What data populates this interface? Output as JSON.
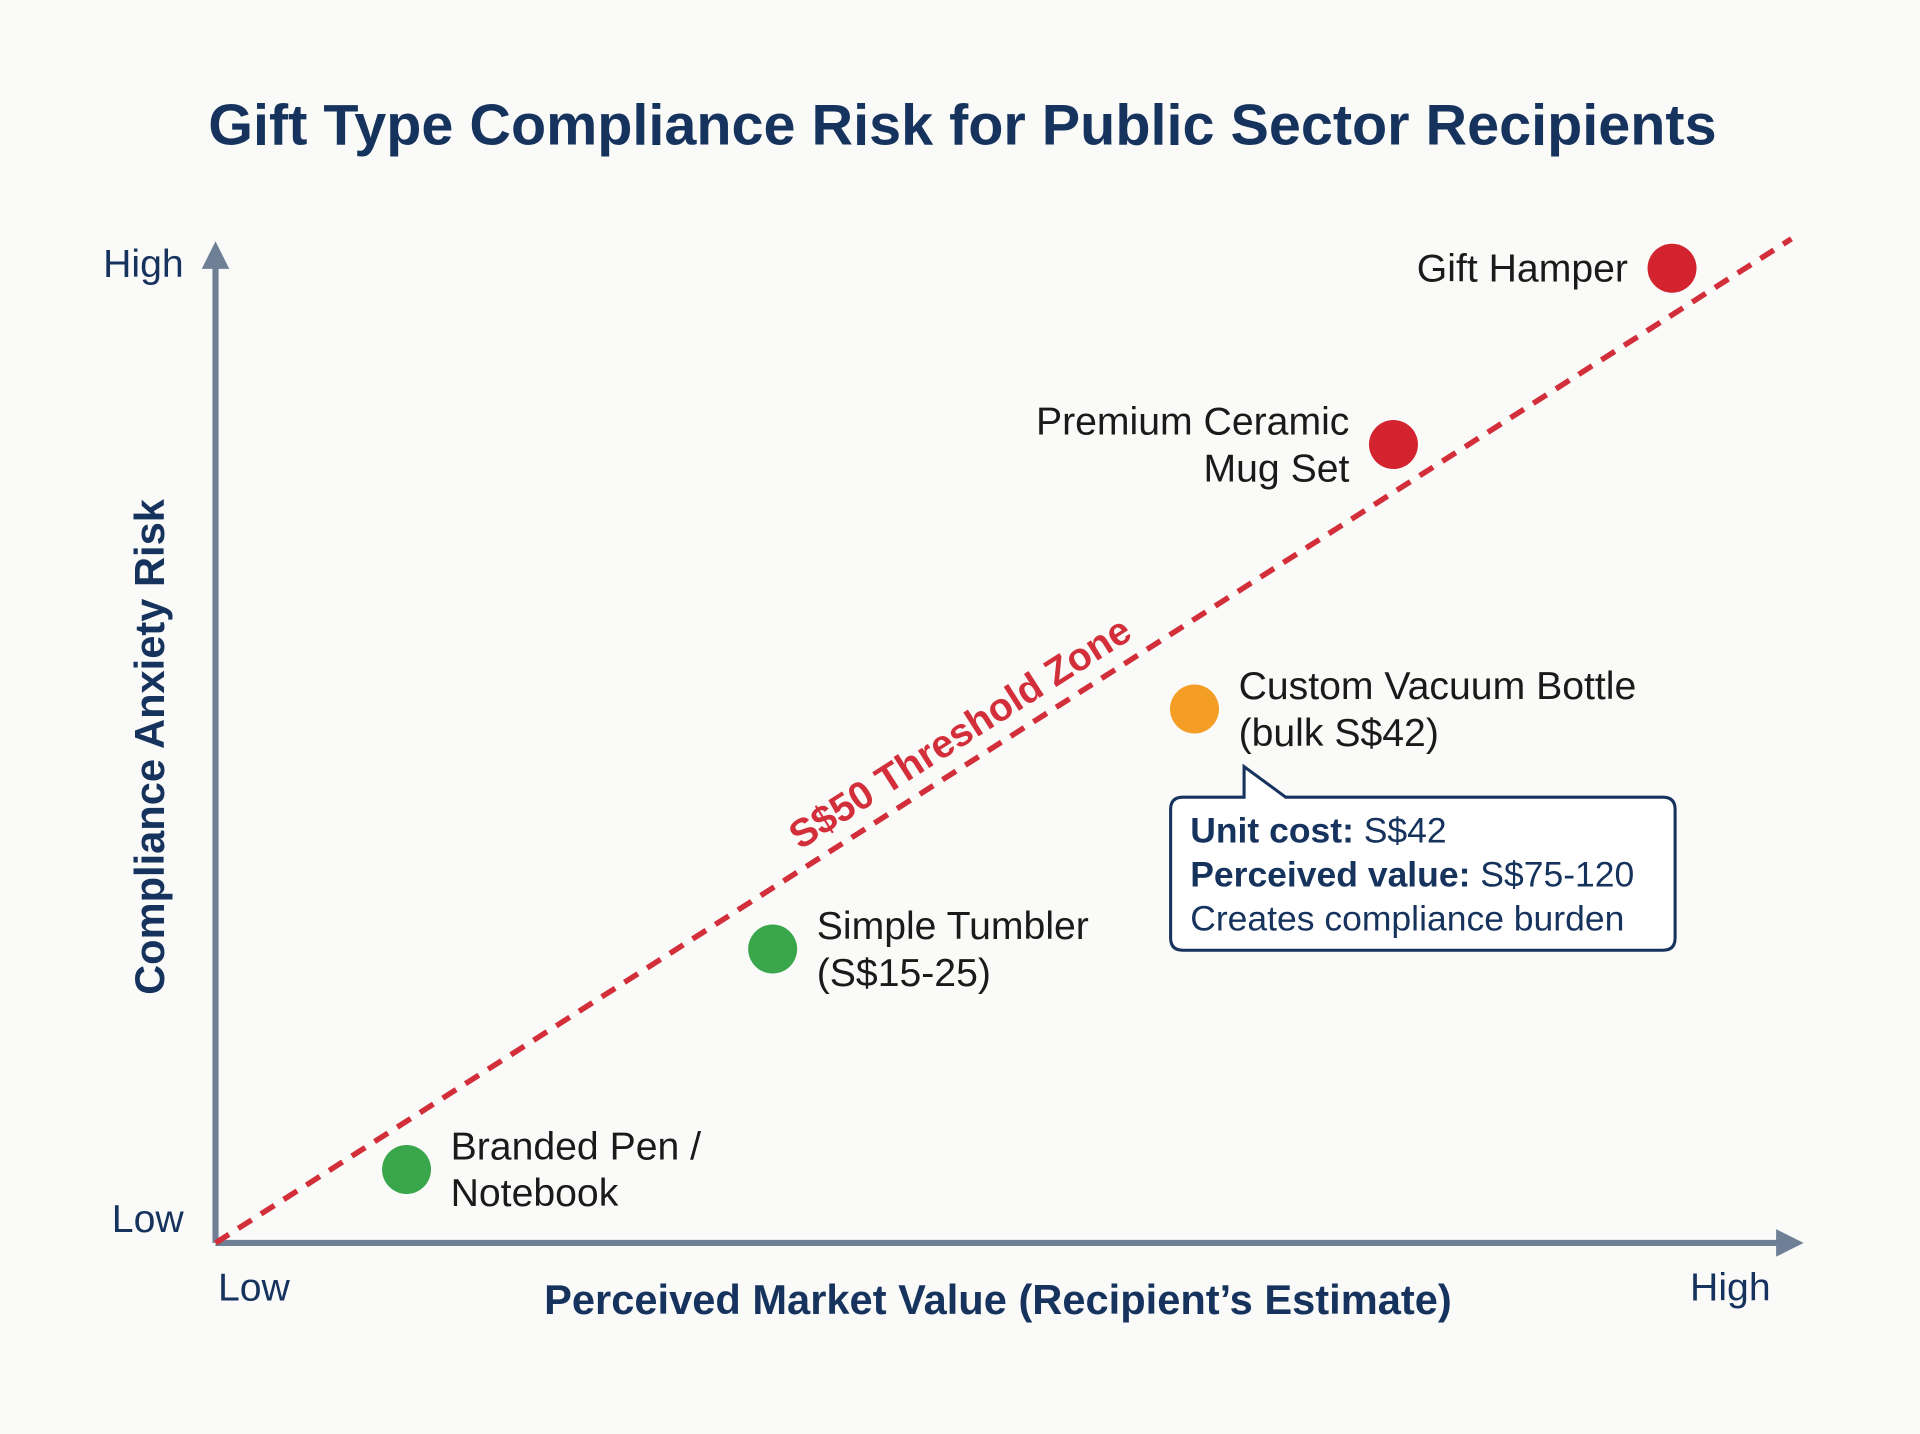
{
  "chart_data": {
    "type": "scatter",
    "title": "Gift Type Compliance Risk for Public Sector Recipients",
    "xlabel": "Perceived Market Value (Recipient’s Estimate)",
    "ylabel": "Compliance Anxiety Risk",
    "x_tick_labels": {
      "low": "Low",
      "high": "High"
    },
    "y_tick_labels": {
      "low": "Low",
      "high": "High"
    },
    "xlim": [
      0,
      10
    ],
    "ylim": [
      0,
      10
    ],
    "grid": false,
    "colors": {
      "title": "#16335e",
      "axis": "#6f7f95",
      "threshold": "#d32f3a",
      "low_risk": "#3aa64c",
      "medium_risk": "#f59e26",
      "high_risk": "#d2232f",
      "label": "#1a1a1a",
      "callout": "#16335e"
    },
    "points": [
      {
        "label_lines": [
          "Branded Pen /",
          "Notebook"
        ],
        "x": 1.2,
        "y": 0.75,
        "risk": "low_risk",
        "label_side": "right"
      },
      {
        "label_lines": [
          "Simple Tumbler",
          "(S$15-25)"
        ],
        "x": 3.5,
        "y": 3.0,
        "risk": "low_risk",
        "label_side": "right"
      },
      {
        "label_lines": [
          "Custom Vacuum Bottle",
          "(bulk S$42)"
        ],
        "x": 6.15,
        "y": 5.45,
        "risk": "medium_risk",
        "label_side": "right"
      },
      {
        "label_lines": [
          "Premium Ceramic",
          "Mug Set"
        ],
        "x": 7.4,
        "y": 8.15,
        "risk": "high_risk",
        "label_side": "left"
      },
      {
        "label_lines": [
          "Gift Hamper"
        ],
        "x": 9.15,
        "y": 9.95,
        "risk": "high_risk",
        "label_side": "left"
      }
    ],
    "threshold_line": {
      "label": "S$50 Threshold Zone",
      "from": [
        0,
        0
      ],
      "to": [
        9.9,
        10.25
      ],
      "style": "dashed"
    },
    "callout": {
      "attached_to": "Custom Vacuum Bottle",
      "lines": [
        {
          "bold": "Unit cost:",
          "text": " S$42"
        },
        {
          "bold": "Perceived value:",
          "text": " S$75-120"
        },
        {
          "bold": "",
          "text": "Creates compliance burden"
        }
      ]
    }
  }
}
